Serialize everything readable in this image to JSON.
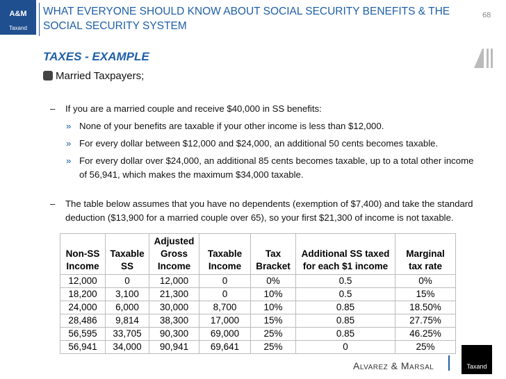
{
  "header": {
    "logo": {
      "top": "A&M",
      "bottom": "Taxand"
    },
    "title": "WHAT EVERYONE SHOULD KNOW ABOUT SOCIAL SECURITY BENEFITS & THE SOCIAL SECURITY SYSTEM",
    "page_number": "68"
  },
  "section_title": "TAXES - EXAMPLE",
  "bullet": "Married Taxpayers;",
  "items": [
    {
      "text": "If you are a married couple and receive $40,000 in SS benefits:",
      "subitems": [
        "None of your benefits are taxable if your other income is less than $12,000.",
        "For every dollar between $12,000 and $24,000, an additional 50 cents becomes taxable.",
        "For every dollar over $24,000, an additional 85 cents becomes taxable, up to a total other income of 56,941, which makes the maximum $34,000 taxable."
      ]
    },
    {
      "text": "The table below assumes that you have no dependents (exemption of $7,400) and take the standard deduction ($13,900 for a married couple over 65), so your first $21,300 of income is not taxable.",
      "subitems": []
    }
  ],
  "table": {
    "header": [
      [
        "Non-SS",
        "Income"
      ],
      [
        "Taxable",
        "SS"
      ],
      [
        "Adjusted",
        "Gross",
        "Income"
      ],
      [
        "Taxable",
        "Income"
      ],
      [
        "Tax",
        "Bracket"
      ],
      [
        "Additional SS taxed",
        "for each $1 income"
      ],
      [
        "Marginal",
        "tax rate"
      ]
    ],
    "rows": [
      [
        "12,000",
        "0",
        "12,000",
        "0",
        "0%",
        "0.5",
        "0%"
      ],
      [
        "18,200",
        "3,100",
        "21,300",
        "0",
        "10%",
        "0.5",
        "15%"
      ],
      [
        "24,000",
        "6,000",
        "30,000",
        "8,700",
        "10%",
        "0.85",
        "18.50%"
      ],
      [
        "28,486",
        "9,814",
        "38,300",
        "17,000",
        "15%",
        "0.85",
        "27.75%"
      ],
      [
        "56,595",
        "33,705",
        "90,300",
        "69,000",
        "25%",
        "0.85",
        "46.25%"
      ],
      [
        "56,941",
        "34,000",
        "90,941",
        "69,641",
        "25%",
        "0",
        "25%"
      ]
    ]
  },
  "footer": {
    "brand": "Alvarez & Marsal",
    "logo": "Taxand"
  }
}
